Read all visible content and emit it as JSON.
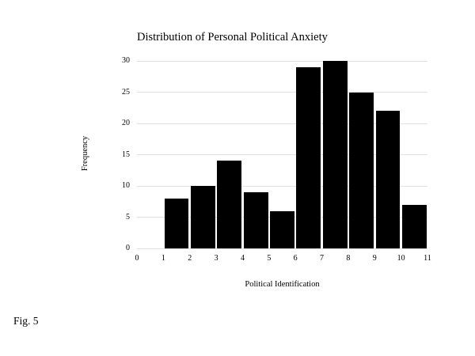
{
  "figure": {
    "caption": "Fig. 5"
  },
  "chart_data": {
    "type": "bar",
    "subtype": "histogram",
    "title": "Distribution of Personal Political Anxiety",
    "xlabel": "Political Identification",
    "ylabel": "Frequency",
    "bin_edges": [
      1,
      2,
      3,
      4,
      5,
      6,
      7,
      8,
      9,
      10,
      11
    ],
    "values": [
      8,
      10,
      14,
      9,
      6,
      29,
      30,
      25,
      22,
      7
    ],
    "xlim": [
      0,
      11
    ],
    "ylim": [
      0,
      30
    ],
    "xticks": [
      0,
      1,
      2,
      3,
      4,
      5,
      6,
      7,
      8,
      9,
      10,
      11
    ],
    "yticks": [
      0,
      5,
      10,
      15,
      20,
      25,
      30
    ],
    "bar_color": "#000000",
    "gridline_color": "#e2e2e2",
    "grid": "horizontal",
    "legend": "none"
  }
}
